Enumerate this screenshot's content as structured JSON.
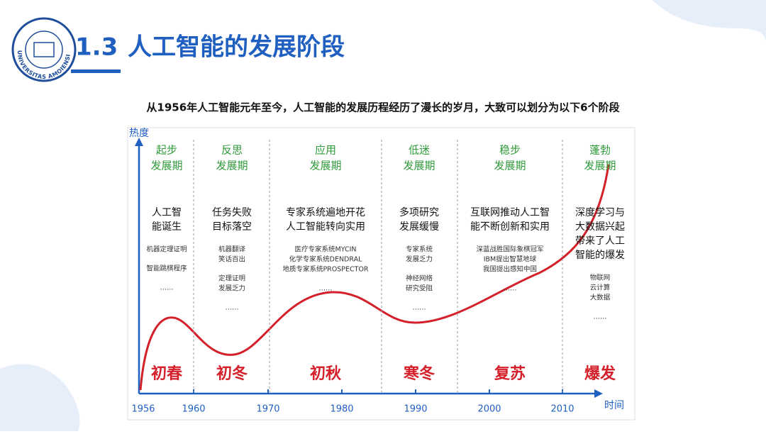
{
  "header": {
    "number": "1.3",
    "title": "人工智能的发展阶段",
    "logo_text": "UNIVERSITAS AMOIENSIS"
  },
  "subtitle": "从1956年人工智能元年至今，人工智能的发展历程经历了漫长的岁月，大致可以划分为以下6个阶段",
  "axis": {
    "y_label": "热度",
    "x_label": "时间",
    "years": [
      1956,
      1960,
      1970,
      1980,
      1990,
      2000,
      2010
    ]
  },
  "stages": [
    {
      "name": [
        "起步",
        "发展期"
      ],
      "summary": [
        "人工智",
        "能诞生"
      ],
      "examples": [
        [
          "机器定理证明"
        ],
        [
          "智能跳棋程序"
        ],
        [
          "……"
        ]
      ],
      "season": "初春"
    },
    {
      "name": [
        "反思",
        "发展期"
      ],
      "summary": [
        "任务失败",
        "目标落空"
      ],
      "examples": [
        [
          "机器翻译",
          "笑话百出"
        ],
        [
          "定理证明",
          "发展乏力"
        ],
        [
          "……"
        ]
      ],
      "season": "初冬"
    },
    {
      "name": [
        "应用",
        "发展期"
      ],
      "summary": [
        "专家系统遍地开花",
        "人工智能转向实用"
      ],
      "examples": [
        [
          "医疗专家系统MYCIN",
          "化学专家系统DENDRAL",
          "地质专家系统PROSPECTOR"
        ],
        [
          "……"
        ]
      ],
      "season": "初秋"
    },
    {
      "name": [
        "低迷",
        "发展期"
      ],
      "summary": [
        "多项研究",
        "发展缓慢"
      ],
      "examples": [
        [
          "专家系统",
          "发展乏力"
        ],
        [
          "神经网络",
          "研究受阻"
        ],
        [
          "……"
        ]
      ],
      "season": "寒冬"
    },
    {
      "name": [
        "稳步",
        "发展期"
      ],
      "summary": [
        "互联网推动人工智",
        "能不断创新和实用"
      ],
      "examples": [
        [
          "深蓝战胜国际象棋冠军",
          "IBM提出智慧地球",
          "我国提出感知中国"
        ],
        [
          "……"
        ]
      ],
      "season": "复苏"
    },
    {
      "name": [
        "蓬勃",
        "发展期"
      ],
      "summary": [
        "深度学习与",
        "大数据兴起",
        "带来了人工",
        "智能的爆发"
      ],
      "examples": [
        [
          "物联网",
          "云计算",
          "大数据"
        ],
        [
          "……"
        ]
      ],
      "season": "爆发"
    }
  ]
}
